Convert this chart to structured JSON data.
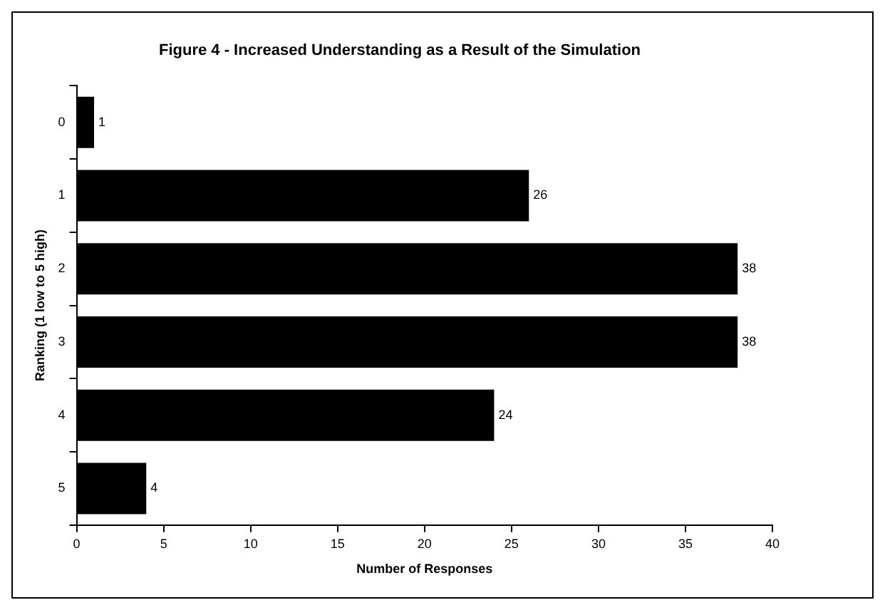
{
  "chart_data": {
    "type": "bar",
    "orientation": "horizontal",
    "title": "Figure 4 - Increased Understanding as a Result of the Simulation",
    "xlabel": "Number of Responses",
    "ylabel": "Ranking (1 low to 5 high)",
    "categories": [
      "0",
      "1",
      "2",
      "3",
      "4",
      "5"
    ],
    "values": [
      1,
      26,
      38,
      38,
      24,
      4
    ],
    "color": "#000000",
    "xlim": [
      0,
      40
    ],
    "xticks": [
      0,
      5,
      10,
      15,
      20,
      25,
      30,
      35,
      40
    ],
    "grid": false,
    "legend": false,
    "data_labels": true
  }
}
